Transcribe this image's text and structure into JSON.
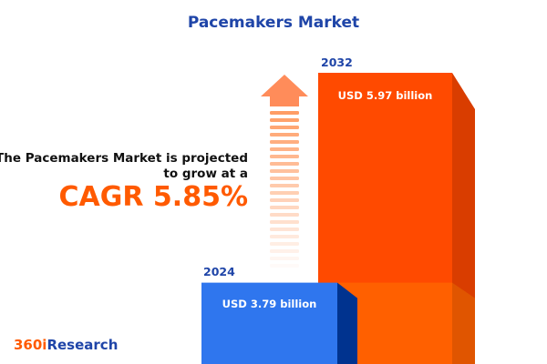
{
  "title": "Pacemakers Market",
  "headline": {
    "line1": "The Pacemakers Market is projected",
    "line2": "to grow at a",
    "cagr": "CAGR 5.85%"
  },
  "chart_data": {
    "type": "bar",
    "categories": [
      "2024",
      "2032"
    ],
    "values": [
      3.79,
      5.97
    ],
    "value_labels": [
      "USD 3.79 billion",
      "USD 5.97 billion"
    ],
    "colors": {
      "2024": "#2f76ee",
      "2032": "#ff4a00"
    },
    "unit": "USD billion"
  },
  "logo": {
    "part1": "360i",
    "part2": "Research"
  }
}
